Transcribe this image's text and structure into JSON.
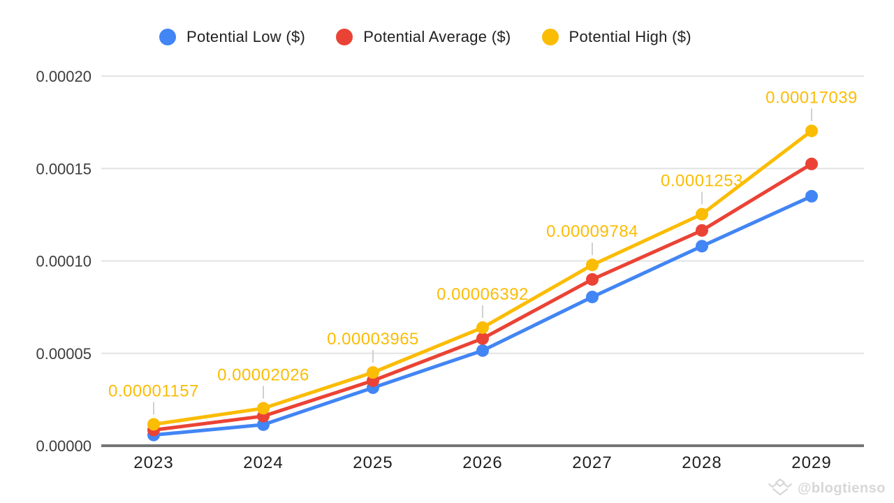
{
  "watermark": {
    "handle": "@blogtienso",
    "icon": "layered-diamond-icon"
  },
  "chart_data": {
    "type": "line",
    "title": "",
    "xlabel": "",
    "ylabel": "",
    "x": [
      "2023",
      "2024",
      "2025",
      "2026",
      "2027",
      "2028",
      "2029"
    ],
    "series": [
      {
        "name": "Potential Low ($)",
        "color": "#4285F4",
        "values": [
          5.8e-06,
          1.14e-05,
          3.14e-05,
          5.15e-05,
          8.05e-05,
          0.000108,
          0.000135
        ]
      },
      {
        "name": "Potential Average ($)",
        "color": "#EA4335",
        "values": [
          8.5e-06,
          1.6e-05,
          3.52e-05,
          5.8e-05,
          9e-05,
          0.0001165,
          0.0001525
        ]
      },
      {
        "name": "Potential High ($)",
        "color": "#FBBC04",
        "values": [
          1.157e-05,
          2.026e-05,
          3.965e-05,
          6.392e-05,
          9.784e-05,
          0.0001253,
          0.00017039
        ],
        "labels": [
          "0.00001157",
          "0.00002026",
          "0.00003965",
          "0.00006392",
          "0.00009784",
          "0.0001253",
          "0.00017039"
        ]
      }
    ],
    "yticks": [
      "0.00020",
      "0.00015",
      "0.00010",
      "0.00005",
      "0.00000"
    ],
    "ylim": [
      0,
      0.0002
    ],
    "grid": true,
    "legend_position": "top",
    "data_label_color": "#FBBC04",
    "colors": {
      "gridline": "#e3e3e3",
      "axis_line": "#757575",
      "y_tick_text": "#3d3d3d",
      "x_tick_text": "#1f1f1f",
      "leader_line": "#d0d0d0"
    }
  }
}
